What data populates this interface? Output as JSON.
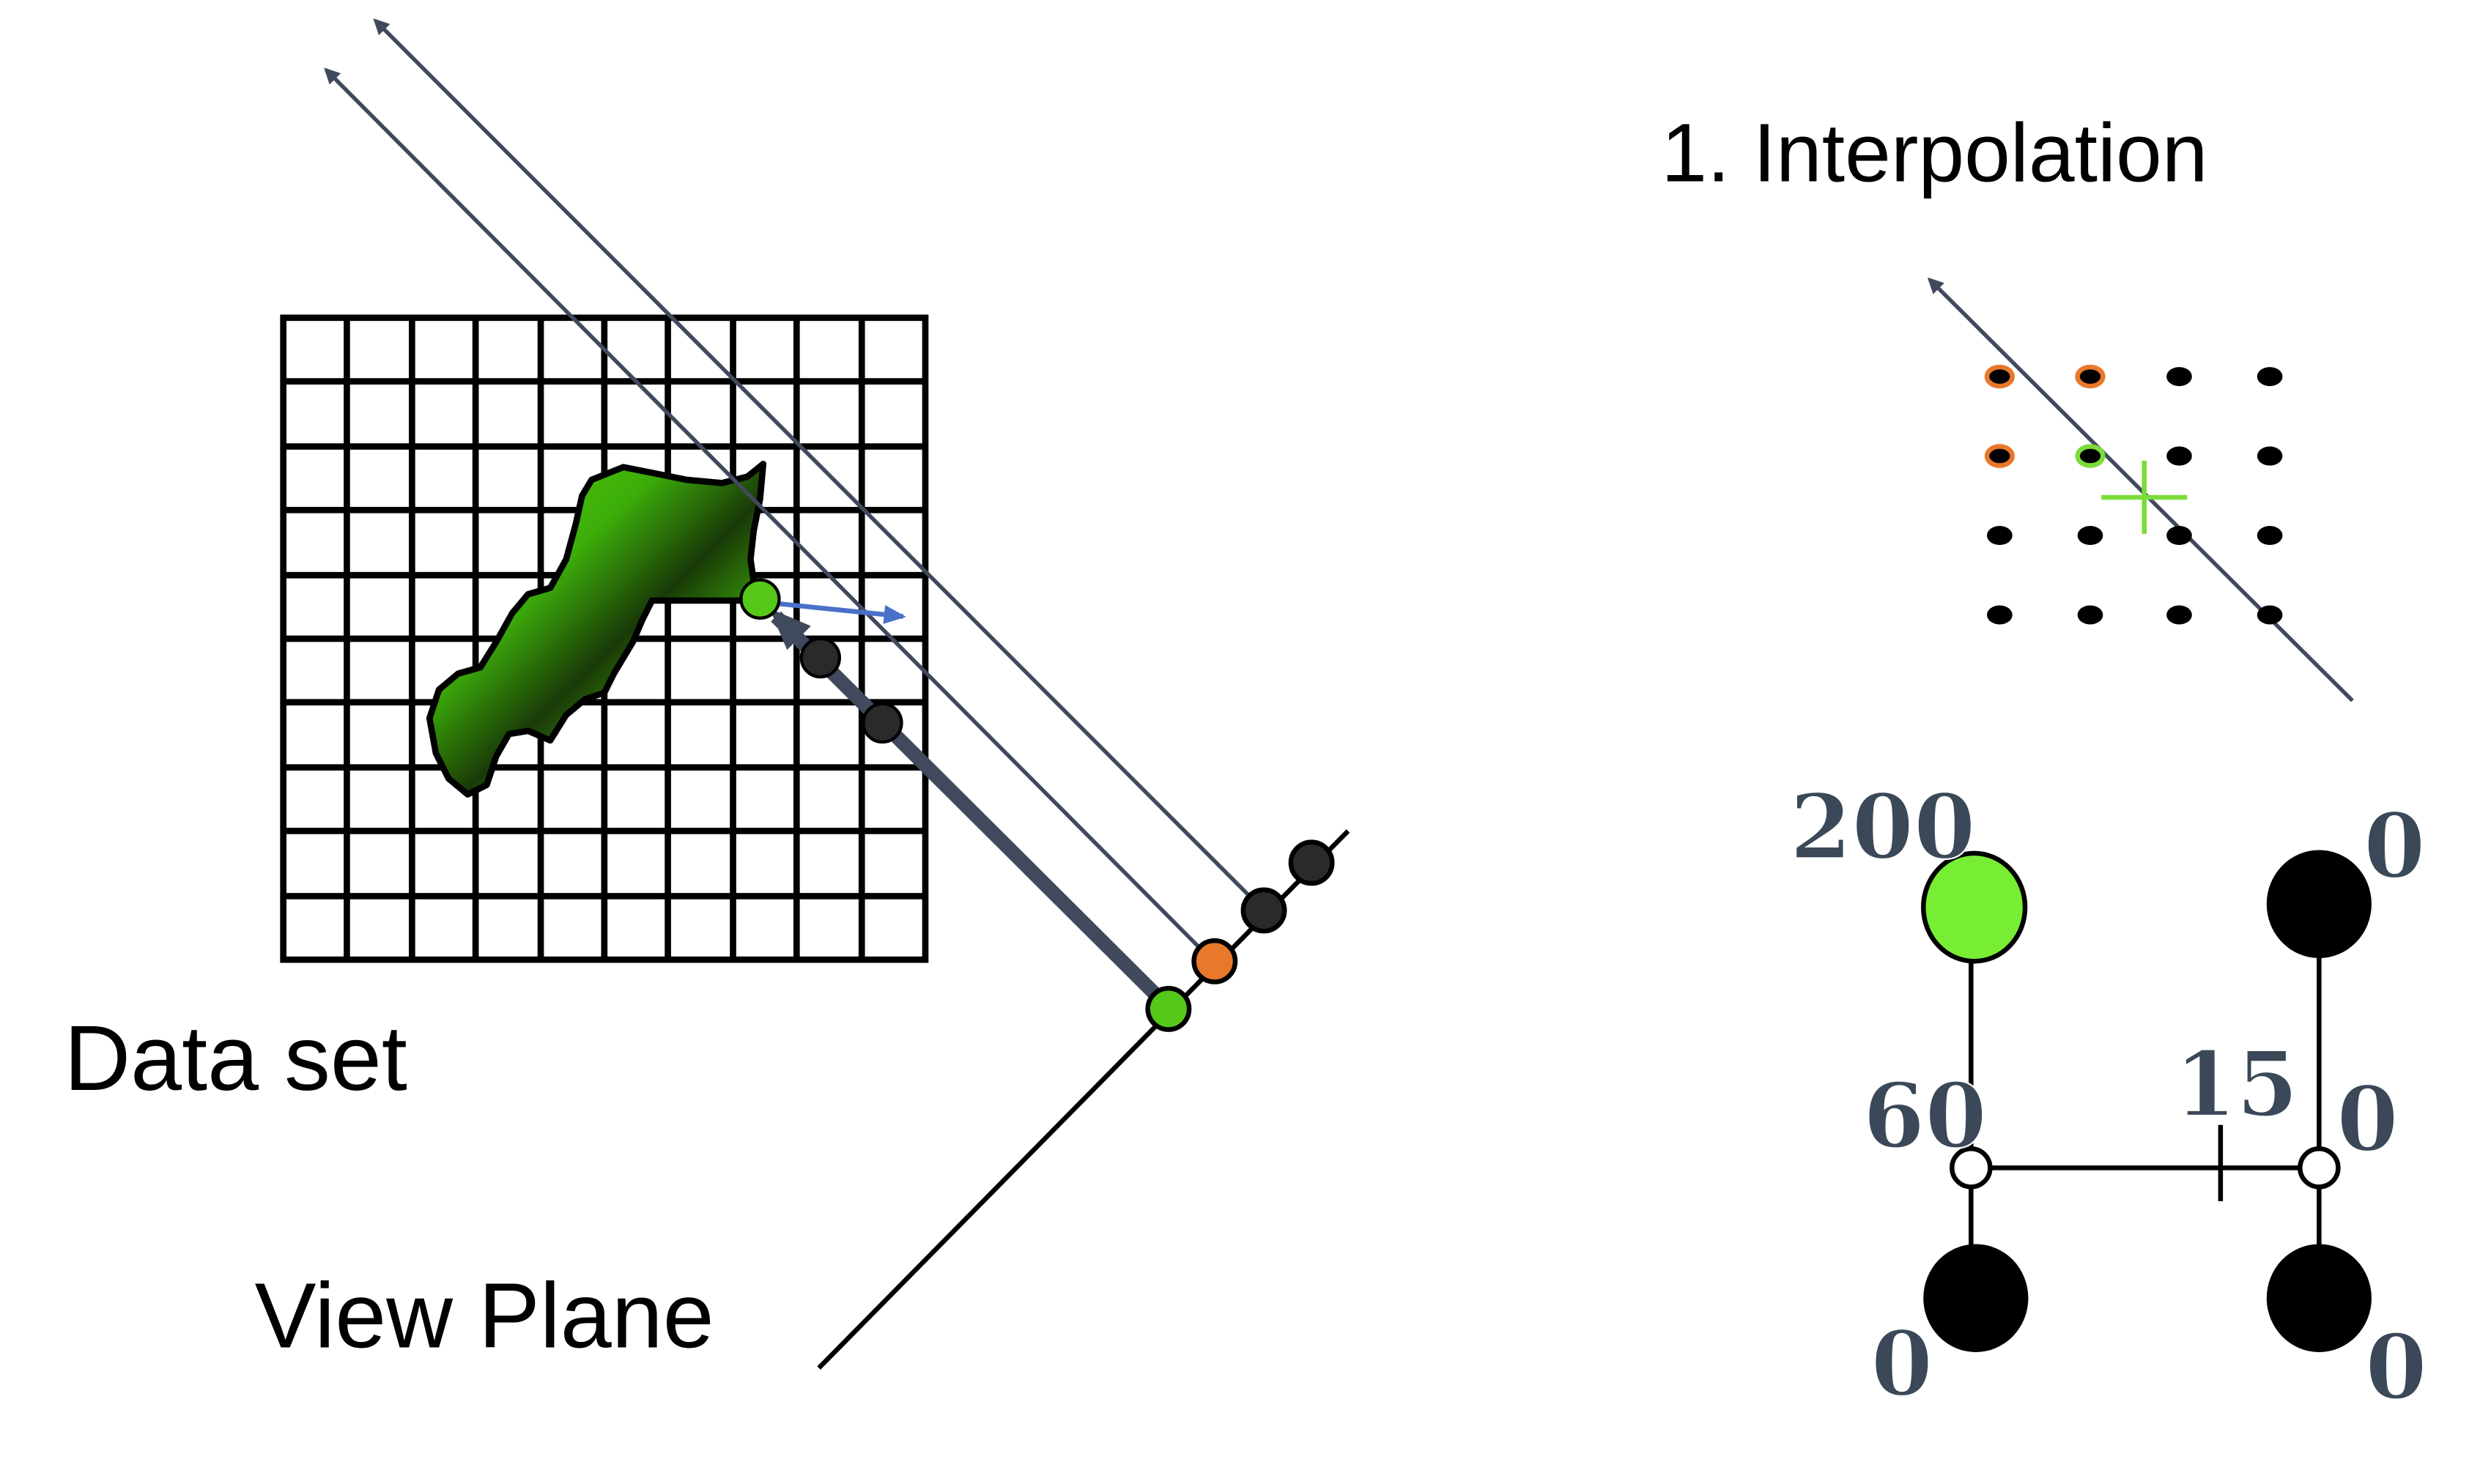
{
  "labels": {
    "data_set": "Data set",
    "view_plane": "View Plane",
    "interpolation_title": "1. Interpolation"
  },
  "interpolation_values": {
    "top_left": "200",
    "top_right": "0",
    "bottom_left": "0",
    "bottom_right": "0",
    "left_edge": "60",
    "right_edge": "0",
    "sample": "15"
  },
  "colors": {
    "ray": "#404a5c",
    "sample_green": "#55c81a",
    "sample_orange": "#e8782a",
    "sample_dark": "#2a2a2a",
    "blob_light": "#5ad400",
    "blob_dark": "#1a3a08",
    "gradient_arrow": "#4a70c8",
    "crosshair": "#7cdc3a",
    "value_text": "#3a4858"
  }
}
